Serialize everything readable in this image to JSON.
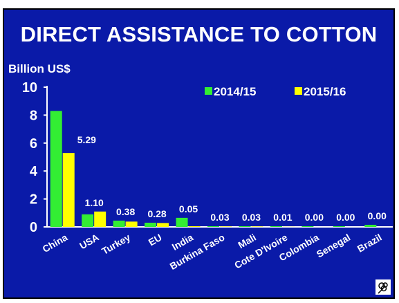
{
  "colors": {
    "background": "#0a1aa8",
    "series_1": "#33ee33",
    "series_2": "#ffff00",
    "text": "#ffffff"
  },
  "logo": {
    "icon": "cotton-boll-icon"
  },
  "chart_data": {
    "type": "bar",
    "title": "DIRECT ASSISTANCE TO COTTON",
    "ylabel": "Billion US$",
    "xlabel": "",
    "ylim": [
      0,
      10
    ],
    "yticks": [
      "0",
      "2",
      "4",
      "6",
      "8",
      "10"
    ],
    "legend_position": "top-right",
    "categories": [
      "China",
      "USA",
      "Turkey",
      "EU",
      "India",
      "Burkina Faso",
      "Mali",
      "Cote D'Ivoire",
      "Colombia",
      "Senegal",
      "Brazil"
    ],
    "series": [
      {
        "name": "2014/15",
        "values": [
          8.3,
          0.9,
          0.45,
          0.3,
          0.65,
          0.05,
          0.05,
          0.05,
          0.05,
          0.05,
          0.15
        ]
      },
      {
        "name": "2015/16",
        "values": [
          5.29,
          1.1,
          0.38,
          0.28,
          0.05,
          0.03,
          0.03,
          0.01,
          0.0,
          0.0,
          0.0
        ]
      }
    ],
    "data_labels": [
      "5.29",
      "1.10",
      "0.38",
      "0.28",
      "0.05",
      "0.03",
      "0.03",
      "0.01",
      "0.00",
      "0.00",
      "0.00"
    ]
  }
}
